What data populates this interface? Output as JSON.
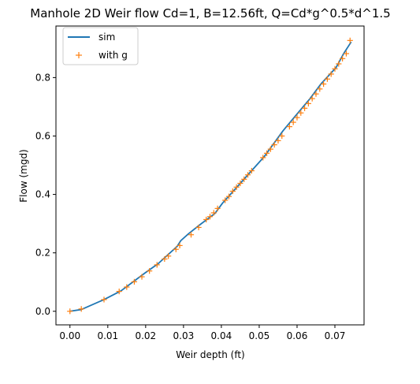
{
  "chart_data": {
    "type": "line",
    "title": "Manhole 2D Weir flow Cd=1, B=12.56ft, Q=Cd*g^0.5*d^1.5",
    "xlabel": "Weir depth (ft)",
    "ylabel": "Flow (mgd)",
    "xlim": [
      -0.0037,
      0.0777
    ],
    "ylim": [
      -0.0465,
      0.9765
    ],
    "xticks": [
      0.0,
      0.01,
      0.02,
      0.03,
      0.04,
      0.05,
      0.06,
      0.07
    ],
    "xtick_labels": [
      "0.00",
      "0.01",
      "0.02",
      "0.03",
      "0.04",
      "0.05",
      "0.06",
      "0.07"
    ],
    "yticks": [
      0.0,
      0.2,
      0.4,
      0.6,
      0.8
    ],
    "ytick_labels": [
      "0.0",
      "0.2",
      "0.4",
      "0.6",
      "0.8"
    ],
    "grid": false,
    "legend_position": "top-left",
    "series": [
      {
        "name": "sim",
        "style": "line",
        "color": "#1f77b4",
        "x": [
          0.0,
          0.003,
          0.009,
          0.0135,
          0.0197,
          0.0233,
          0.0283,
          0.0293,
          0.0313,
          0.0343,
          0.0383,
          0.0403,
          0.0493,
          0.0513,
          0.0563,
          0.0603,
          0.0633,
          0.0663,
          0.0703,
          0.0723,
          0.0743
        ],
        "y": [
          0.0,
          0.006,
          0.04,
          0.07,
          0.13,
          0.163,
          0.222,
          0.242,
          0.265,
          0.296,
          0.335,
          0.37,
          0.5,
          0.529,
          0.618,
          0.68,
          0.726,
          0.778,
          0.834,
          0.882,
          0.922
        ]
      },
      {
        "name": "with g",
        "style": "marker",
        "marker": "+",
        "color": "#ff7f0e",
        "x": [
          0.0,
          0.003,
          0.009,
          0.013,
          0.015,
          0.017,
          0.019,
          0.021,
          0.023,
          0.025,
          0.026,
          0.028,
          0.029,
          0.032,
          0.034,
          0.036,
          0.037,
          0.038,
          0.039,
          0.041,
          0.042,
          0.043,
          0.044,
          0.045,
          0.046,
          0.047,
          0.048,
          0.051,
          0.052,
          0.053,
          0.054,
          0.055,
          0.056,
          0.058,
          0.059,
          0.06,
          0.061,
          0.062,
          0.063,
          0.064,
          0.065,
          0.066,
          0.067,
          0.068,
          0.069,
          0.07,
          0.071,
          0.072,
          0.073,
          0.074
        ],
        "y": [
          0.0,
          0.008,
          0.04,
          0.068,
          0.083,
          0.101,
          0.118,
          0.138,
          0.159,
          0.179,
          0.189,
          0.212,
          0.225,
          0.262,
          0.287,
          0.314,
          0.324,
          0.337,
          0.352,
          0.38,
          0.393,
          0.411,
          0.425,
          0.438,
          0.452,
          0.467,
          0.481,
          0.526,
          0.541,
          0.555,
          0.57,
          0.584,
          0.6,
          0.632,
          0.647,
          0.663,
          0.679,
          0.695,
          0.711,
          0.728,
          0.744,
          0.761,
          0.778,
          0.795,
          0.812,
          0.83,
          0.847,
          0.865,
          0.882,
          0.927
        ]
      }
    ]
  }
}
